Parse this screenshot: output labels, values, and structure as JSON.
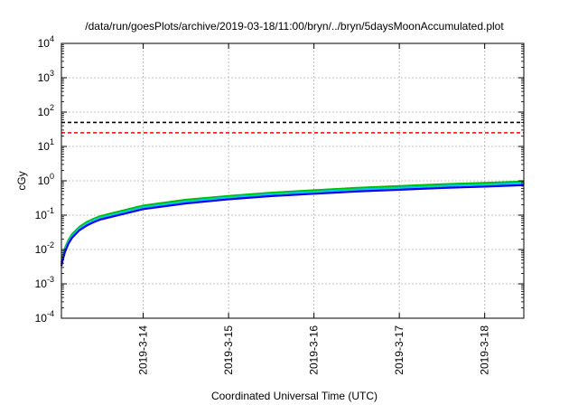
{
  "chart_data": {
    "type": "line",
    "title": "/data/run/goesPlots/archive/2019-03-18/11:00/bryn/../bryn/5daysMoonAccumulated.plot",
    "xlabel": "Coordinated Universal Time (UTC)",
    "ylabel": "cGy",
    "yscale": "log",
    "ylim": [
      0.0001,
      10000
    ],
    "xlim": [
      "2019-03-13T01:00",
      "2019-03-18T11:00"
    ],
    "grid": true,
    "x_ticks": [
      "2019-3-14",
      "2019-3-15",
      "2019-3-16",
      "2019-3-17",
      "2019-3-18"
    ],
    "y_ticks": [
      {
        "base": "10",
        "exp": "-4"
      },
      {
        "base": "10",
        "exp": "-3"
      },
      {
        "base": "10",
        "exp": "-2"
      },
      {
        "base": "10",
        "exp": "-1"
      },
      {
        "base": "10",
        "exp": "0"
      },
      {
        "base": "10",
        "exp": "1"
      },
      {
        "base": "10",
        "exp": "2"
      },
      {
        "base": "10",
        "exp": "3"
      },
      {
        "base": "10",
        "exp": "4"
      }
    ],
    "series": [
      {
        "color": "#000000",
        "style": "dashed",
        "x": [
          "2019-03-13T01:00",
          "2019-03-18T11:00"
        ],
        "y": [
          50,
          50
        ]
      },
      {
        "color": "#ff0000",
        "style": "dashed",
        "x": [
          "2019-03-13T01:00",
          "2019-03-18T11:00"
        ],
        "y": [
          25,
          25
        ]
      },
      {
        "color": "#00bb00",
        "style": "solid",
        "x": [
          "2019-03-13T01:00",
          "2019-03-13T01:20",
          "2019-03-13T02:00",
          "2019-03-13T03:00",
          "2019-03-13T04:00",
          "2019-03-13T06:00",
          "2019-03-13T08:00",
          "2019-03-13T10:00",
          "2019-03-13T12:00",
          "2019-03-14T00:00",
          "2019-03-14T12:00",
          "2019-03-15T00:00",
          "2019-03-15T12:00",
          "2019-03-16T00:00",
          "2019-03-16T12:00",
          "2019-03-17T00:00",
          "2019-03-17T12:00",
          "2019-03-18T00:00",
          "2019-03-18T11:00"
        ],
        "y": [
          0.0042,
          0.006,
          0.011,
          0.019,
          0.028,
          0.045,
          0.062,
          0.078,
          0.094,
          0.19,
          0.28,
          0.36,
          0.45,
          0.53,
          0.62,
          0.7,
          0.79,
          0.87,
          0.95
        ]
      },
      {
        "color": "#00cccc",
        "style": "solid",
        "x": [
          "2019-03-13T01:00",
          "2019-03-13T01:20",
          "2019-03-13T02:00",
          "2019-03-13T03:00",
          "2019-03-13T04:00",
          "2019-03-13T06:00",
          "2019-03-13T08:00",
          "2019-03-13T10:00",
          "2019-03-13T12:00",
          "2019-03-14T00:00",
          "2019-03-14T12:00",
          "2019-03-15T00:00",
          "2019-03-15T12:00",
          "2019-03-16T00:00",
          "2019-03-16T12:00",
          "2019-03-17T00:00",
          "2019-03-17T12:00",
          "2019-03-18T00:00",
          "2019-03-18T11:00"
        ],
        "y": [
          0.0038,
          0.0055,
          0.0098,
          0.017,
          0.025,
          0.041,
          0.056,
          0.071,
          0.085,
          0.17,
          0.25,
          0.33,
          0.41,
          0.48,
          0.56,
          0.63,
          0.71,
          0.78,
          0.86
        ]
      },
      {
        "color": "#0000ff",
        "style": "solid",
        "x": [
          "2019-03-13T01:00",
          "2019-03-13T01:20",
          "2019-03-13T02:00",
          "2019-03-13T03:00",
          "2019-03-13T04:00",
          "2019-03-13T06:00",
          "2019-03-13T08:00",
          "2019-03-13T10:00",
          "2019-03-13T12:00",
          "2019-03-14T00:00",
          "2019-03-14T12:00",
          "2019-03-15T00:00",
          "2019-03-15T12:00",
          "2019-03-16T00:00",
          "2019-03-16T12:00",
          "2019-03-17T00:00",
          "2019-03-17T12:00",
          "2019-03-18T00:00",
          "2019-03-18T11:00"
        ],
        "y": [
          0.0033,
          0.0048,
          0.0085,
          0.015,
          0.022,
          0.036,
          0.049,
          0.062,
          0.075,
          0.15,
          0.22,
          0.29,
          0.36,
          0.42,
          0.49,
          0.55,
          0.62,
          0.68,
          0.75
        ]
      }
    ]
  }
}
